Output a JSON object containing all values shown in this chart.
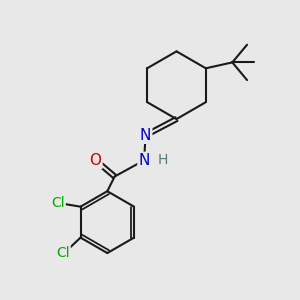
{
  "bg_color": "#e8e8e8",
  "bond_color": "#1a1a1a",
  "bond_width": 1.5,
  "atom_colors": {
    "N": "#0000cc",
    "O": "#cc0000",
    "Cl": "#00aa00",
    "H": "#557777",
    "C": "#1a1a1a"
  },
  "font_size_atom": 11,
  "font_size_H": 9
}
